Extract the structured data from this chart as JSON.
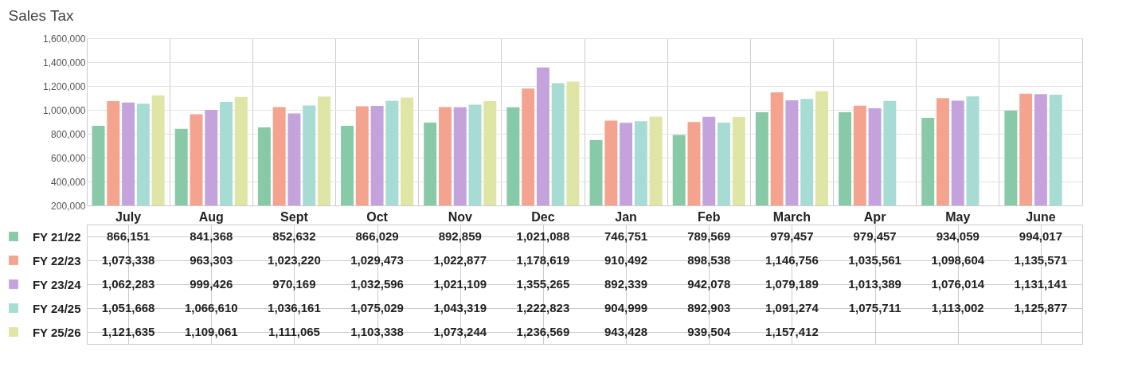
{
  "chart_data": {
    "type": "bar",
    "title": "Sales Tax",
    "categories": [
      "July",
      "Aug",
      "Sept",
      "Oct",
      "Nov",
      "Dec",
      "Jan",
      "Feb",
      "March",
      "Apr",
      "May",
      "June"
    ],
    "series": [
      {
        "name": "FY 21/22",
        "color": "#88c9a8",
        "values": [
          866151,
          841368,
          852632,
          866029,
          892859,
          1021088,
          746751,
          789569,
          979457,
          979457,
          934059,
          994017
        ],
        "value_labels": [
          "866,151",
          "841,368",
          "852,632",
          "866,029",
          "892,859",
          "1,021,088",
          "746,751",
          "789,569",
          "979,457",
          "979,457",
          "934,059",
          "994,017"
        ]
      },
      {
        "name": "FY 22/23",
        "color": "#f4a48e",
        "values": [
          1073338,
          963303,
          1023220,
          1029473,
          1022877,
          1178619,
          910492,
          898538,
          1146756,
          1035561,
          1098604,
          1135571
        ],
        "value_labels": [
          "1,073,338",
          "963,303",
          "1,023,220",
          "1,029,473",
          "1,022,877",
          "1,178,619",
          "910,492",
          "898,538",
          "1,146,756",
          "1,035,561",
          "1,098,604",
          "1,135,571"
        ]
      },
      {
        "name": "FY 23/24",
        "color": "#c4a2dc",
        "values": [
          1062283,
          999426,
          970169,
          1032596,
          1021109,
          1355265,
          892339,
          942078,
          1079189,
          1013389,
          1076014,
          1131141
        ],
        "value_labels": [
          "1,062,283",
          "999,426",
          "970,169",
          "1,032,596",
          "1,021,109",
          "1,355,265",
          "892,339",
          "942,078",
          "1,079,189",
          "1,013,389",
          "1,076,014",
          "1,131,141"
        ]
      },
      {
        "name": "FY 24/25",
        "color": "#a6dcd3",
        "values": [
          1051668,
          1066610,
          1036161,
          1075029,
          1043319,
          1222823,
          904999,
          892903,
          1091274,
          1075711,
          1113002,
          1125877
        ],
        "value_labels": [
          "1,051,668",
          "1,066,610",
          "1,036,161",
          "1,075,029",
          "1,043,319",
          "1,222,823",
          "904,999",
          "892,903",
          "1,091,274",
          "1,075,711",
          "1,113,002",
          "1,125,877"
        ]
      },
      {
        "name": "FY 25/26",
        "color": "#dfe5a4",
        "values": [
          1121635,
          1109061,
          1111065,
          1103338,
          1073244,
          1236569,
          943428,
          939504,
          1157412,
          null,
          null,
          null
        ],
        "value_labels": [
          "1,121,635",
          "1,109,061",
          "1,111,065",
          "1,103,338",
          "1,073,244",
          "1,236,569",
          "943,428",
          "939,504",
          "1,157,412",
          null,
          null,
          null
        ]
      }
    ],
    "ylim": [
      200000,
      1600000
    ],
    "yticks": [
      {
        "value": 200000,
        "label": "200,000"
      },
      {
        "value": 400000,
        "label": "400,000"
      },
      {
        "value": 600000,
        "label": "600,000"
      },
      {
        "value": 800000,
        "label": "800,000"
      },
      {
        "value": 1000000,
        "label": "1,000,000"
      },
      {
        "value": 1200000,
        "label": "1,200,000"
      },
      {
        "value": 1400000,
        "label": "1,400,000"
      },
      {
        "value": 1600000,
        "label": "1,600,000"
      }
    ],
    "grid": "y",
    "legend": "bottom"
  }
}
